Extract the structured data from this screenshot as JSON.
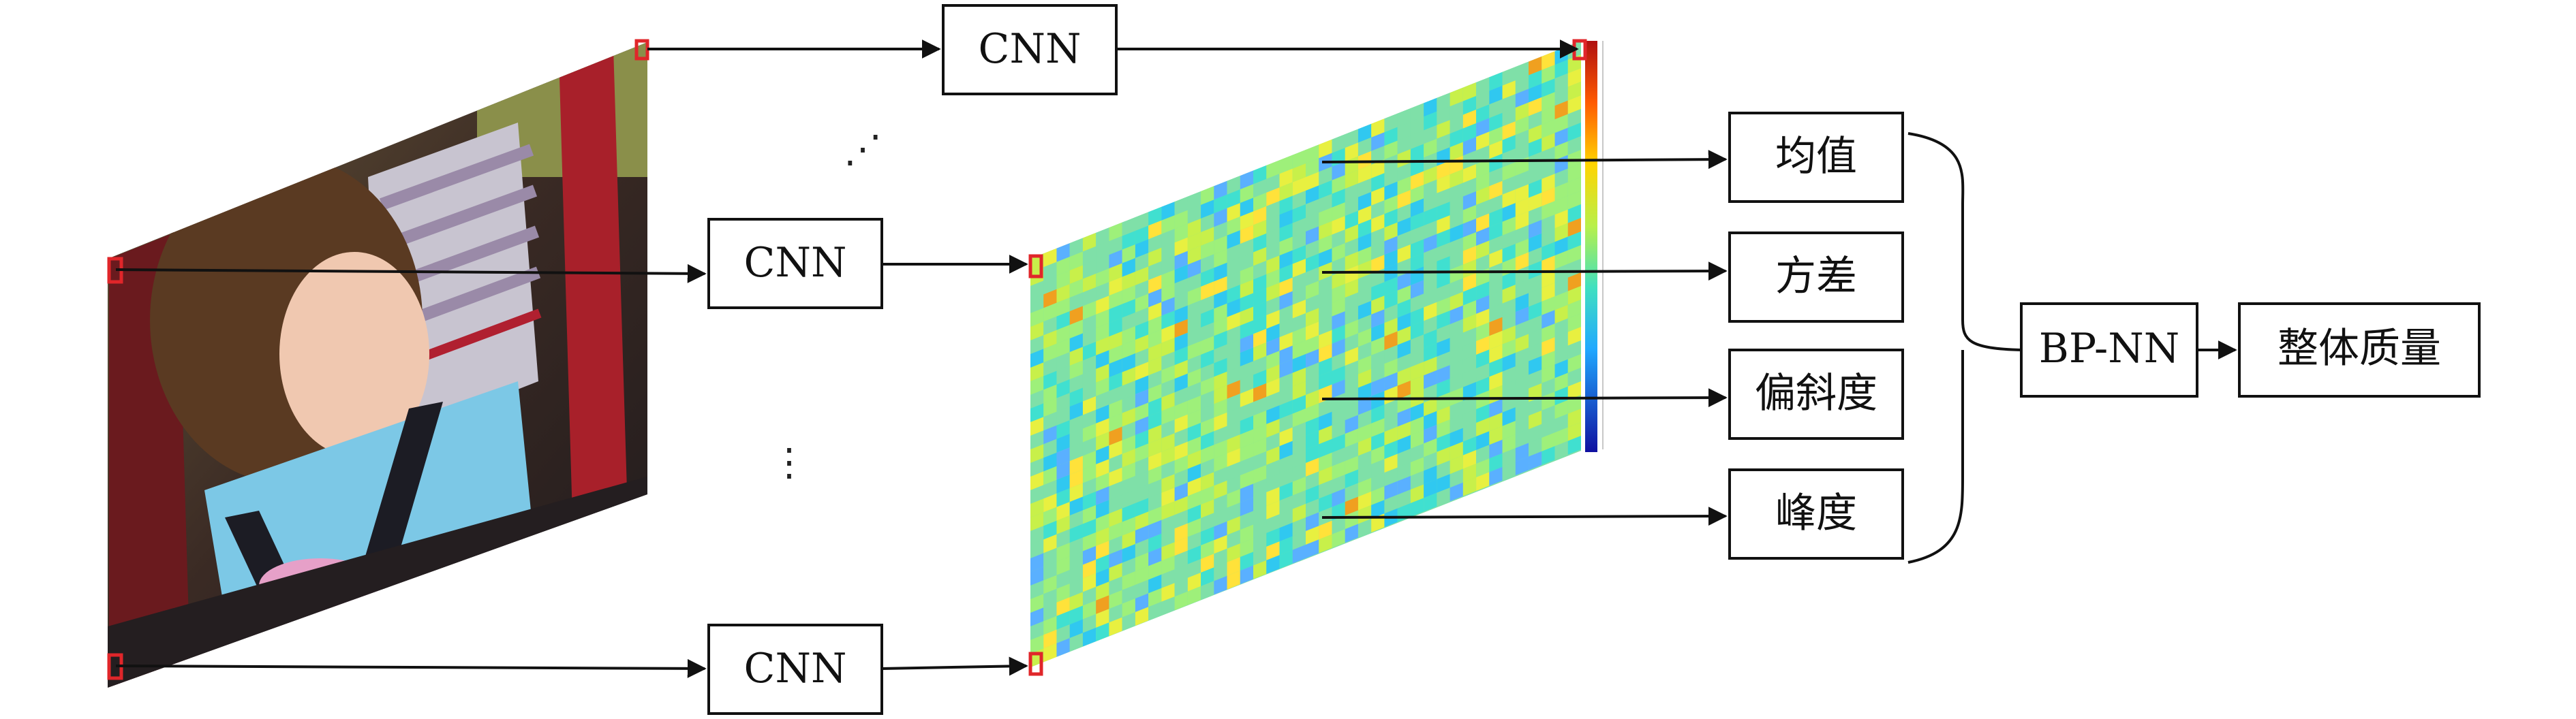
{
  "nodes": {
    "cnn_top": "CNN",
    "cnn_middle": "CNN",
    "cnn_bottom": "CNN",
    "stat_mean": "均值",
    "stat_variance": "方差",
    "stat_skewness": "偏斜度",
    "stat_kurtosis": "峰度",
    "bpnn": "BP-NN",
    "overall_quality": "整体质量"
  },
  "ellipsis": {
    "diagonal": "⋰",
    "vertical": "⋮"
  },
  "images": {
    "input_photo": "input image (child in stroller), shown in perspective",
    "quality_map": "patch quality heat map (jet colormap) with colorbar"
  },
  "colors": {
    "heatmap_base": "#7fe0a8",
    "corner_marker": "#e0262a",
    "colorbar_top": "#b01010",
    "colorbar_bottom": "#1010a0"
  }
}
